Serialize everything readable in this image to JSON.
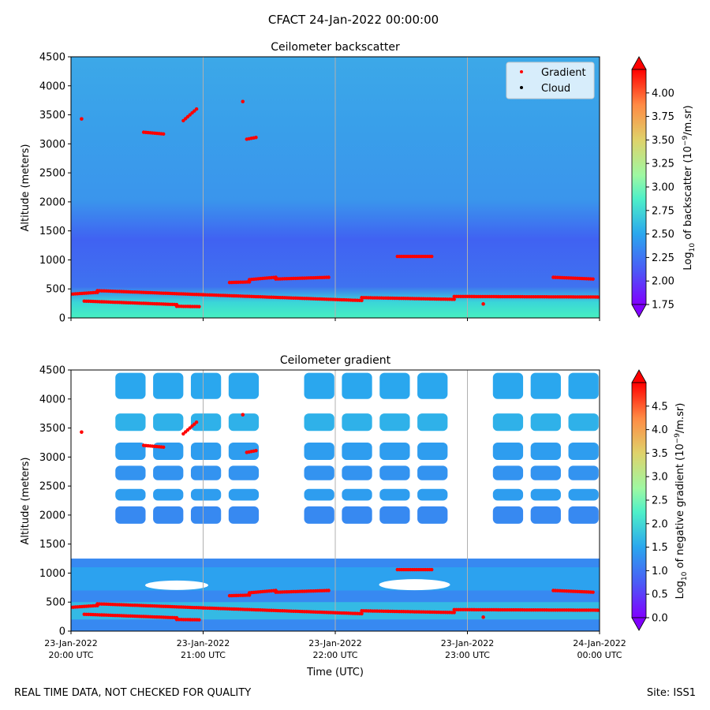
{
  "figure": {
    "suptitle": "CFACT 24-Jan-2022 00:00:00",
    "footer_left": "REAL TIME DATA, NOT CHECKED FOR QUALITY",
    "footer_right": "Site: ISS1"
  },
  "chart_data": [
    {
      "type": "heatmap",
      "title": "Ceilometer backscatter",
      "xlabel": "",
      "ylabel": "Altitude (meters)",
      "ylim": [
        0,
        4500
      ],
      "y_ticks": [
        "0",
        "500",
        "1000",
        "1500",
        "2000",
        "2500",
        "3000",
        "3500",
        "4000",
        "4500"
      ],
      "x_range": [
        "23-Jan-2022 20:00 UTC",
        "24-Jan-2022 00:00 UTC"
      ],
      "x_ticks": [
        {
          "date": "23-Jan-2022",
          "time": "20:00 UTC"
        },
        {
          "date": "23-Jan-2022",
          "time": "21:00 UTC"
        },
        {
          "date": "23-Jan-2022",
          "time": "22:00 UTC"
        },
        {
          "date": "23-Jan-2022",
          "time": "23:00 UTC"
        },
        {
          "date": "24-Jan-2022",
          "time": "00:00 UTC"
        }
      ],
      "grid": "vertical",
      "legend": {
        "placement": "top-right",
        "entries": [
          {
            "label": "Gradient",
            "color": "#ff0000"
          },
          {
            "label": "Cloud",
            "color": "#000000"
          }
        ]
      },
      "colorbar": {
        "label": "Log₁₀ of backscatter (10⁻⁹/m.sr)",
        "label_main": "Log",
        "label_sub": "10",
        "label_mid": " of backscatter (10",
        "label_sup": "−9",
        "label_end": "/m.sr)",
        "range": [
          1.75,
          4.25
        ],
        "ticks": [
          "1.75",
          "2.00",
          "2.25",
          "2.50",
          "2.75",
          "3.00",
          "3.25",
          "3.50",
          "3.75",
          "4.00"
        ],
        "tick_values": [
          1.75,
          2.0,
          2.25,
          2.5,
          2.75,
          3.0,
          3.25,
          3.5,
          3.75,
          4.0
        ],
        "colormap": "rainbow"
      }
    },
    {
      "type": "heatmap",
      "title": "Ceilometer gradient",
      "xlabel": "Time (UTC)",
      "ylabel": "Altitude (meters)",
      "ylim": [
        0,
        4500
      ],
      "y_ticks": [
        "0",
        "500",
        "1000",
        "1500",
        "2000",
        "2500",
        "3000",
        "3500",
        "4000",
        "4500"
      ],
      "x_range": [
        "23-Jan-2022 20:00 UTC",
        "24-Jan-2022 00:00 UTC"
      ],
      "grid": "vertical",
      "colorbar": {
        "label": "Log₁₀ of negative gradient (10⁻⁹/m.sr)",
        "label_main": "Log",
        "label_sub": "10",
        "label_mid": " of negative gradient (10",
        "label_sup": "−9",
        "label_end": "/m.sr)",
        "range": [
          0,
          5
        ],
        "ticks": [
          "0.0",
          "0.5",
          "1.0",
          "1.5",
          "2.0",
          "2.5",
          "3.0",
          "3.5",
          "4.0",
          "4.5"
        ],
        "tick_values": [
          0,
          0.5,
          1.0,
          1.5,
          2.0,
          2.5,
          3.0,
          3.5,
          4.0,
          4.5
        ],
        "colormap": "rainbow"
      },
      "cloud_bands": [
        {
          "y0": 4000,
          "y1": 4450,
          "value": 1.5
        },
        {
          "y0": 3450,
          "y1": 3750,
          "value": 1.6
        },
        {
          "y0": 2950,
          "y1": 3250,
          "value": 1.4
        },
        {
          "y0": 2600,
          "y1": 2850,
          "value": 1.3
        },
        {
          "y0": 2250,
          "y1": 2450,
          "value": 1.4
        },
        {
          "y0": 1850,
          "y1": 2150,
          "value": 1.2
        }
      ]
    }
  ],
  "gradient_points": {
    "series_label": "Gradient",
    "segments": [
      {
        "x": [
          20.0,
          20.2
        ],
        "y": [
          410,
          440
        ]
      },
      {
        "x": [
          20.1,
          20.8
        ],
        "y": [
          290,
          230
        ]
      },
      {
        "x": [
          20.8,
          20.97
        ],
        "y": [
          200,
          195
        ]
      },
      {
        "x": [
          20.2,
          21.0
        ],
        "y": [
          470,
          400
        ]
      },
      {
        "x": [
          21.0,
          22.2
        ],
        "y": [
          400,
          300
        ]
      },
      {
        "x": [
          22.2,
          22.9
        ],
        "y": [
          350,
          320
        ]
      },
      {
        "x": [
          22.9,
          24.0
        ],
        "y": [
          370,
          360
        ]
      },
      {
        "x": [
          21.2,
          21.35
        ],
        "y": [
          610,
          620
        ]
      },
      {
        "x": [
          21.35,
          21.55
        ],
        "y": [
          660,
          700
        ]
      },
      {
        "x": [
          21.55,
          21.95
        ],
        "y": [
          670,
          700
        ]
      },
      {
        "x": [
          22.47,
          22.73
        ],
        "y": [
          1060,
          1060
        ]
      },
      {
        "x": [
          23.65,
          23.95
        ],
        "y": [
          700,
          670
        ]
      },
      {
        "x": [
          20.55,
          20.7
        ],
        "y": [
          3200,
          3170
        ]
      },
      {
        "x": [
          20.85,
          20.95
        ],
        "y": [
          3400,
          3600
        ]
      },
      {
        "x": [
          21.33,
          21.4
        ],
        "y": [
          3080,
          3110
        ]
      },
      {
        "x": [
          20.08,
          20.08
        ],
        "y": [
          3430,
          3430
        ]
      },
      {
        "x": [
          21.3,
          21.3
        ],
        "y": [
          3730,
          3730
        ]
      },
      {
        "x": [
          23.12,
          23.12
        ],
        "y": [
          240,
          240
        ]
      }
    ]
  }
}
